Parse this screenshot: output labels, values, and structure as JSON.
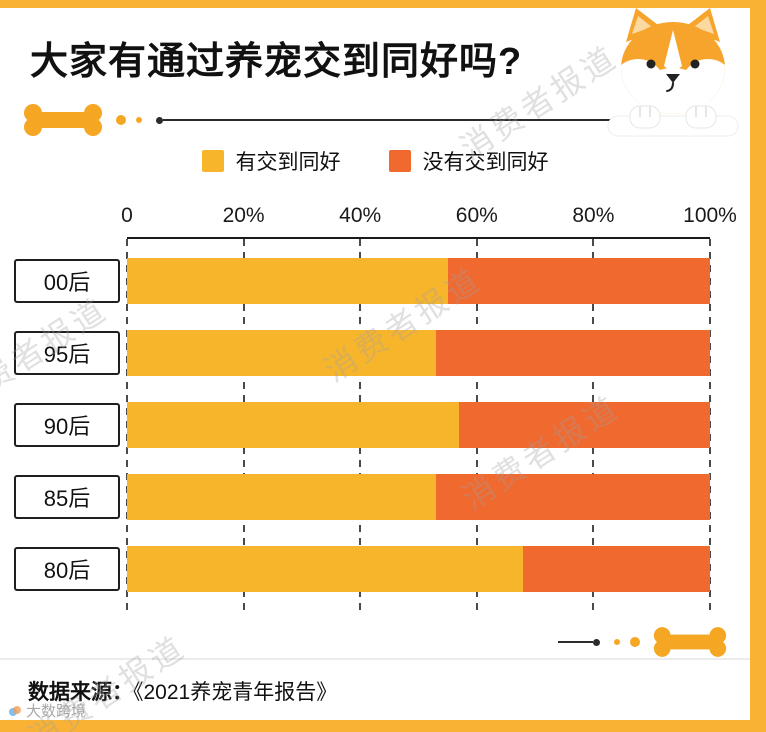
{
  "title": "大家有通过养宠交到同好吗?",
  "legend": [
    {
      "label": "有交到同好",
      "color": "#F7B52C"
    },
    {
      "label": "没有交到同好",
      "color": "#F0692F"
    }
  ],
  "chart_data": {
    "type": "bar",
    "variant": "horizontal-stacked",
    "title": "大家有通过养宠交到同好吗?",
    "categories": [
      "00后",
      "95后",
      "90后",
      "85后",
      "80后"
    ],
    "series": [
      {
        "name": "有交到同好",
        "color": "#F7B52C",
        "values": [
          55,
          53,
          57,
          53,
          68
        ]
      },
      {
        "name": "没有交到同好",
        "color": "#F0692F",
        "values": [
          45,
          47,
          43,
          47,
          32
        ]
      }
    ],
    "x_ticks": [
      "0",
      "20%",
      "40%",
      "60%",
      "80%",
      "100%"
    ],
    "xlim": [
      0,
      100
    ],
    "grid": "dashed-vertical",
    "legend_position": "top-center"
  },
  "footer": {
    "source_label": "数据来源：",
    "source_value": "《2021养宠青年报告》"
  },
  "watermark": {
    "text": "消费者报道",
    "brand": "大数跨境"
  },
  "colors": {
    "background": "#F9B233",
    "card": "#FFFFFF",
    "bone": "#F5A623",
    "axis": "#1A1A1A",
    "yellow_series": "#F7B52C",
    "orange_series": "#F0692F"
  }
}
